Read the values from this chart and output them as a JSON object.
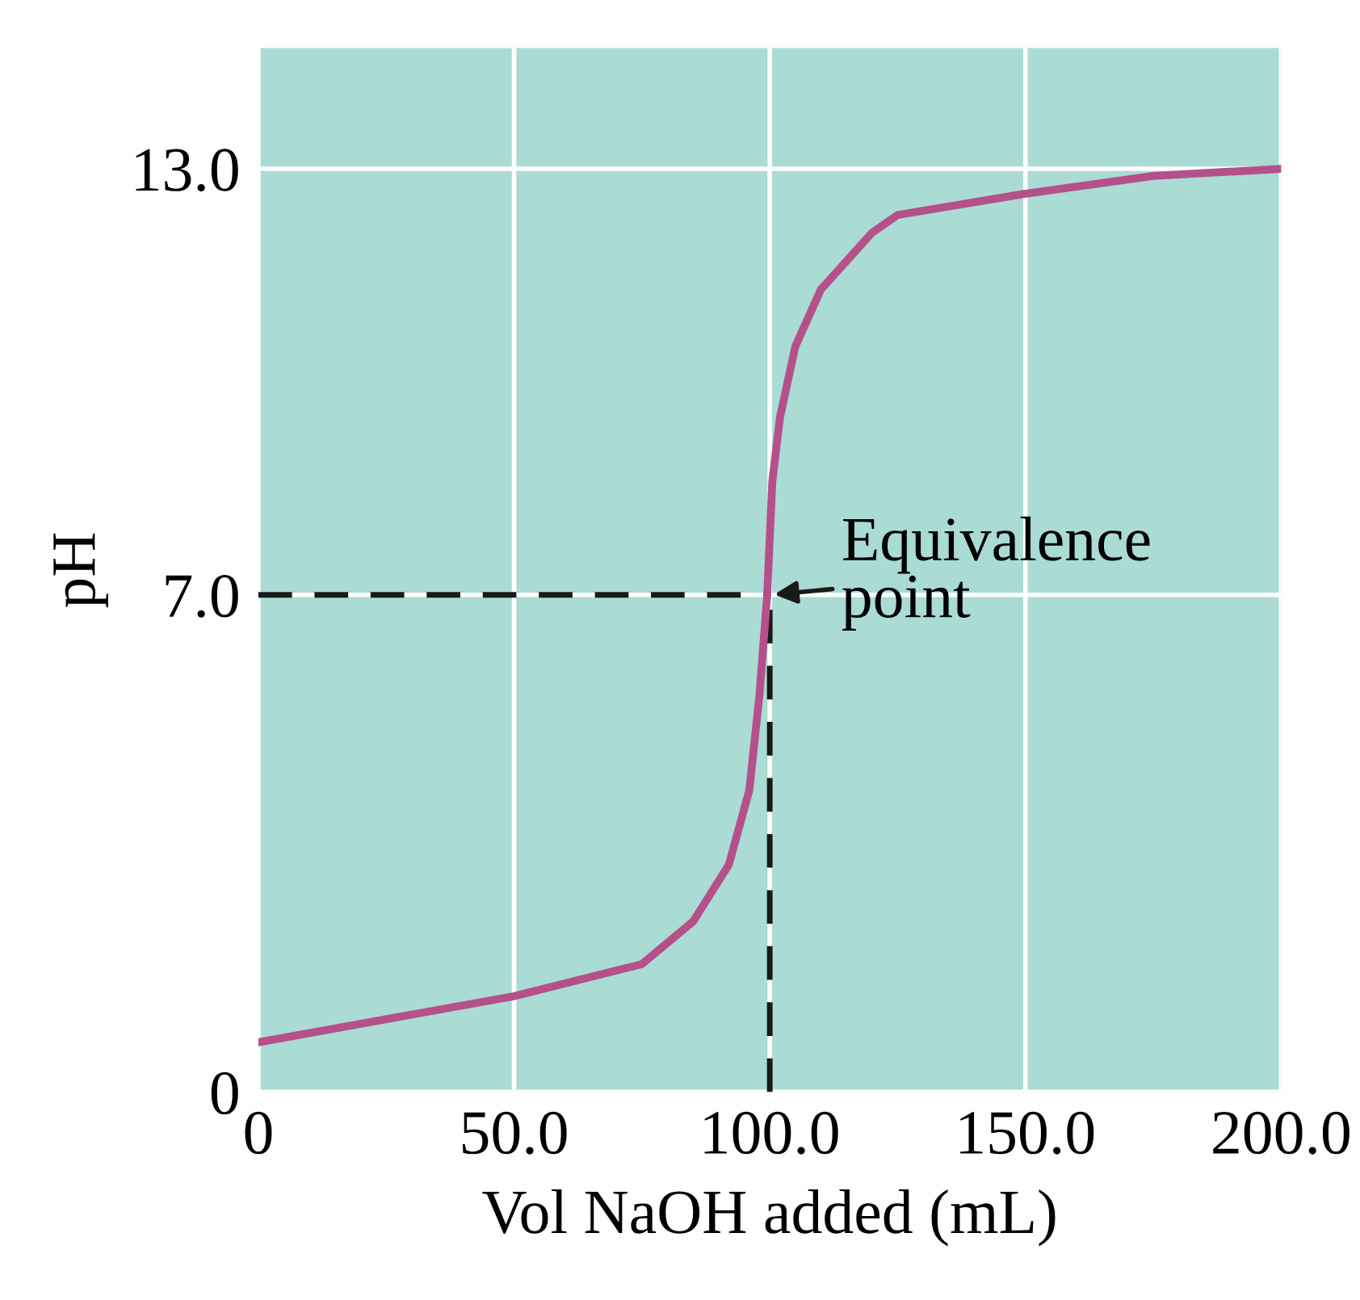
{
  "chart_data": {
    "type": "line",
    "xlabel": "Vol NaOH added (mL)",
    "ylabel": "pH",
    "x": [
      0,
      50,
      75,
      85,
      92,
      96,
      98,
      99.5,
      100.5,
      102,
      105,
      110,
      120,
      125,
      150,
      175,
      200
    ],
    "series": [
      {
        "color": "#b5508a",
        "values": [
          0.7,
          1.35,
          1.8,
          2.4,
          3.2,
          4.25,
          5.6,
          7.0,
          8.6,
          9.5,
          10.5,
          11.3,
          12.1,
          12.35,
          12.65,
          12.9,
          13.0
        ]
      }
    ],
    "xlim": [
      0,
      200
    ],
    "ylim": [
      0,
      14.7
    ],
    "xticks": [
      {
        "value": 0,
        "label": "0"
      },
      {
        "value": 50,
        "label": "50.0"
      },
      {
        "value": 100,
        "label": "100.0"
      },
      {
        "value": 150,
        "label": "150.0"
      },
      {
        "value": 200,
        "label": "200.0"
      }
    ],
    "yticks": [
      {
        "value": 0,
        "label": "0"
      },
      {
        "value": 7,
        "label": "7.0"
      },
      {
        "value": 13,
        "label": "13.0"
      }
    ],
    "grid": true,
    "marker": "none",
    "line_style": "solid",
    "ref_lines": [
      {
        "axis": "y",
        "value": 7.0,
        "color": "#1a1a1a",
        "line_style": "dashed"
      },
      {
        "axis": "x",
        "value": 100,
        "color": "#1a1a1a",
        "line_style": "dashed"
      }
    ],
    "annotations": [
      {
        "text": "Equivalence\npoint",
        "x": 100,
        "y": 7.0
      }
    ]
  }
}
